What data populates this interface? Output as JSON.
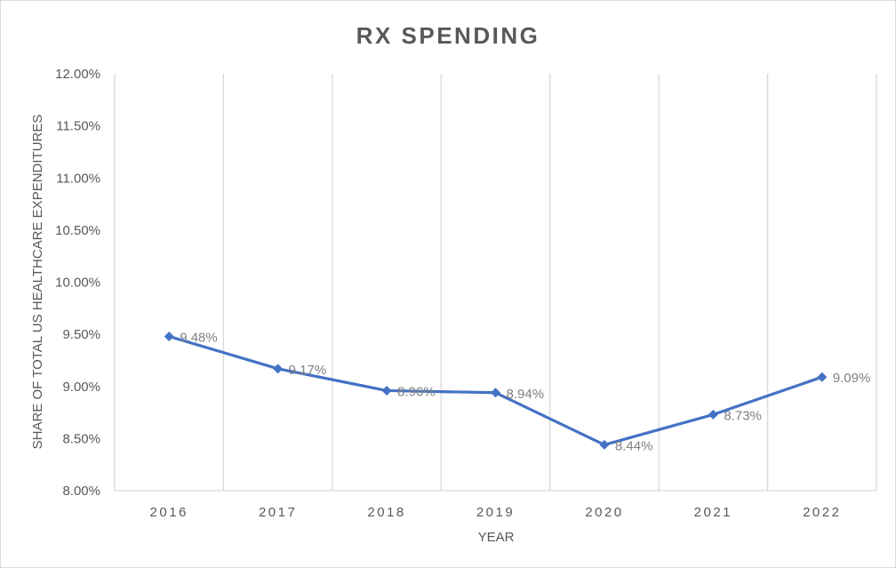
{
  "chart_data": {
    "type": "line",
    "title": "RX SPENDING",
    "xlabel": "YEAR",
    "ylabel": "SHARE OF TOTAL US HEALTHCARE EXPENDITURES",
    "categories": [
      "2016",
      "2017",
      "2018",
      "2019",
      "2020",
      "2021",
      "2022"
    ],
    "series": [
      {
        "values": [
          9.48,
          9.17,
          8.96,
          8.94,
          8.44,
          8.73,
          9.09
        ],
        "data_labels": [
          "9.48%",
          "9.17%",
          "8.96%",
          "8.94%",
          "8.44%",
          "8.73%",
          "9.09%"
        ],
        "marker": "diamond",
        "color": "#4472c4"
      }
    ],
    "ylim": [
      8.0,
      12.0
    ],
    "yticks": [
      8.0,
      8.5,
      9.0,
      9.5,
      10.0,
      10.5,
      11.0,
      11.5,
      12.0
    ],
    "ytick_labels": [
      "8.00%",
      "8.50%",
      "9.00%",
      "9.50%",
      "10.00%",
      "10.50%",
      "11.00%",
      "11.50%",
      "12.00%"
    ],
    "grid": "vertical",
    "legend": "none",
    "colors": {
      "line": "#4472c4",
      "grid": "#d9d9d9",
      "text": "#595959",
      "data_label": "#7f7f7f"
    }
  }
}
